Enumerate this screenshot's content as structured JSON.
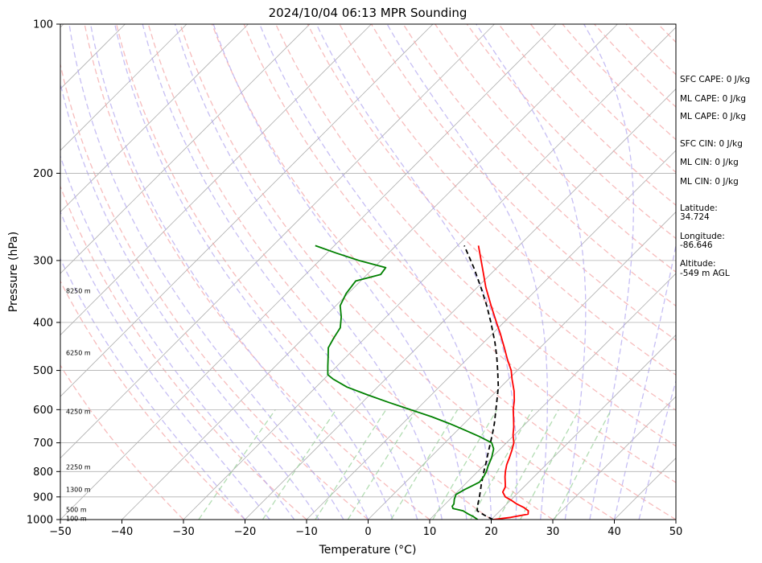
{
  "chart_data": {
    "type": "line",
    "title": "2024/10/04 06:13 MPR Sounding",
    "xlabel": "Temperature (°C)",
    "ylabel": "Pressure (hPa)",
    "xlim": [
      -50,
      50
    ],
    "ylim": [
      1000,
      100
    ],
    "yscale": "log",
    "grid": true,
    "x_ticks": [
      -50,
      -40,
      -30,
      -20,
      -10,
      0,
      10,
      20,
      30,
      40,
      50
    ],
    "y_ticks": [
      100,
      200,
      300,
      400,
      500,
      600,
      700,
      800,
      900,
      1000
    ],
    "background_lines": {
      "isotherms_colour": "#b0b0b0",
      "dry_adiabats_colour": "#f4a6a6",
      "moist_adiabats_colour": "#b3a8f0",
      "mixing_ratio_colour": "#9fd39f"
    },
    "series": [
      {
        "color": "#ff0000",
        "pressure": [
          1000,
          990,
          975,
          960,
          945,
          930,
          915,
          900,
          880,
          860,
          850,
          820,
          800,
          775,
          750,
          725,
          700,
          675,
          650,
          620,
          600,
          575,
          550,
          520,
          500,
          475,
          450,
          420,
          400,
          370,
          340,
          310,
          280
        ],
        "temperature": [
          20.3,
          22.8,
          25.1,
          24.6,
          23.3,
          21.6,
          20.2,
          18.6,
          17.4,
          17.0,
          16.6,
          15.3,
          14.5,
          13.6,
          12.9,
          12.1,
          11.2,
          9.8,
          8.6,
          6.9,
          5.7,
          4.4,
          2.8,
          0.5,
          -1.0,
          -3.4,
          -5.8,
          -8.9,
          -11.2,
          -14.8,
          -18.6,
          -22.4,
          -26.6
        ]
      },
      {
        "color": "#000000",
        "pressure": [
          1000,
          980,
          960,
          940,
          920,
          900,
          870,
          850,
          820,
          800,
          770,
          740,
          700,
          670,
          640,
          600,
          570,
          540,
          500,
          470,
          440,
          400,
          370,
          340,
          310,
          280
        ],
        "temperature": [
          20.3,
          18.2,
          16.3,
          15.6,
          15.0,
          14.4,
          13.4,
          12.7,
          11.7,
          11.0,
          10.0,
          8.9,
          7.4,
          6.2,
          4.9,
          2.9,
          1.3,
          -0.4,
          -3.2,
          -5.5,
          -8.1,
          -12.1,
          -15.5,
          -19.4,
          -23.8,
          -28.9
        ]
      },
      {
        "color": "#008000",
        "pressure": [
          1000,
          985,
          975,
          960,
          950,
          940,
          930,
          910,
          890,
          870,
          860,
          840,
          820,
          800,
          780,
          750,
          720,
          700,
          680,
          660,
          640,
          620,
          600,
          580,
          560,
          540,
          520,
          510,
          490,
          470,
          450,
          430,
          410,
          390,
          370,
          350,
          330,
          320,
          310,
          300,
          290,
          280
        ],
        "temperature": [
          17.8,
          16.5,
          15.4,
          14.0,
          12.0,
          11.5,
          11.4,
          10.7,
          10.2,
          10.8,
          11.2,
          12.0,
          11.8,
          11.4,
          10.8,
          10.0,
          8.9,
          7.6,
          4.6,
          1.2,
          -2.4,
          -6.4,
          -11.0,
          -15.7,
          -20.4,
          -25.0,
          -28.6,
          -30.1,
          -31.5,
          -32.9,
          -34.4,
          -35.1,
          -35.7,
          -37.3,
          -39.3,
          -40.3,
          -40.8,
          -37.8,
          -38.1,
          -43.6,
          -48.4,
          -53.1
        ]
      }
    ],
    "height_labels": [
      {
        "pressure": 995,
        "label": "100 m"
      },
      {
        "pressure": 955,
        "label": "500 m"
      },
      {
        "pressure": 870,
        "label": "1300 m"
      },
      {
        "pressure": 783,
        "label": "2250 m"
      },
      {
        "pressure": 605,
        "label": "4250 m"
      },
      {
        "pressure": 460,
        "label": "6250 m"
      },
      {
        "pressure": 345,
        "label": "8250 m"
      }
    ]
  },
  "side_panel": {
    "sfc_cape": "SFC CAPE: 0 J/kg",
    "ml_cape_1": "ML CAPE: 0 J/kg",
    "ml_cape_2": "ML CAPE: 0 J/kg",
    "sfc_cin": "SFC CIN: 0 J/kg",
    "ml_cin_1": "ML CIN: 0 J/kg",
    "ml_cin_2": "ML CIN: 0 J/kg",
    "latitude_label": "Latitude:",
    "latitude_value": "34.724",
    "longitude_label": "Longitude:",
    "longitude_value": "-86.646",
    "altitude_label": "Altitude:",
    "altitude_value": "-549 m AGL"
  }
}
